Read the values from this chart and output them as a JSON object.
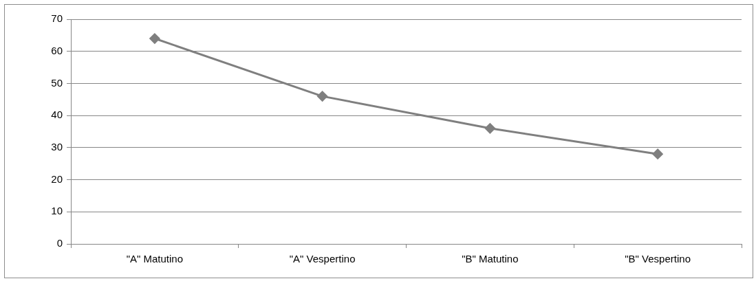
{
  "chart_data": {
    "type": "line",
    "categories": [
      "\"A\" Matutino",
      "\"A\" Vespertino",
      "\"B\" Matutino",
      "\"B\" Vespertino"
    ],
    "series": [
      {
        "color": "#7f7f7f",
        "values": [
          64,
          46,
          36,
          28
        ]
      }
    ],
    "ylim": [
      0,
      70
    ],
    "yticks": [
      0,
      10,
      20,
      30,
      40,
      50,
      60,
      70
    ],
    "grid": "y",
    "legend": false,
    "marker": "diamond",
    "line_style": "solid"
  }
}
